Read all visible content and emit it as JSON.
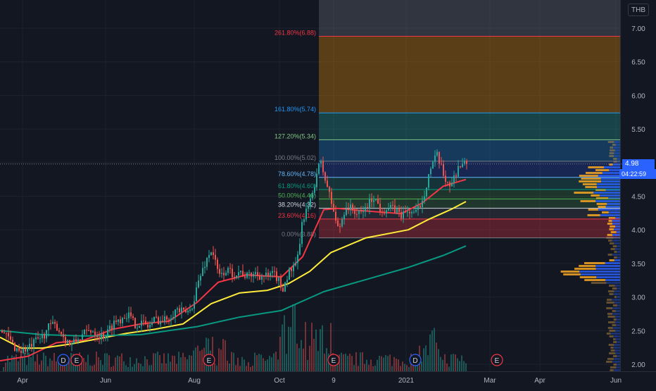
{
  "symbol_currency": "THB",
  "last_price": "4.98",
  "countdown": "04:22:59",
  "colors": {
    "background": "#131722",
    "up": "#26a69a",
    "down": "#ef5350",
    "ma_red": "#f23645",
    "ma_yellow": "#ffeb3b",
    "ma_teal": "#089981",
    "accent": "#2962ff"
  },
  "chart_data": {
    "type": "candlestick",
    "y_axis": {
      "ticks": [
        "7.00",
        "6.50",
        "6.00",
        "5.50",
        "5.00",
        "4.50",
        "4.00",
        "3.50",
        "3.00",
        "2.50",
        "2.00"
      ],
      "ylim": [
        2.0,
        7.0
      ]
    },
    "x_axis": {
      "ticks": [
        "Apr",
        "Jun",
        "Aug",
        "Oct",
        "9",
        "2021",
        "Mar",
        "Apr",
        "Jun"
      ]
    },
    "fib_levels": [
      {
        "label": "261.80%(6.88)",
        "value": 6.88,
        "color": "#f23645"
      },
      {
        "label": "161.80%(5.74)",
        "value": 5.74,
        "color": "#2196f3"
      },
      {
        "label": "127.20%(5.34)",
        "value": 5.34,
        "color": "#81c784"
      },
      {
        "label": "100.00%(5.02)",
        "value": 5.02,
        "color": "#787b86"
      },
      {
        "label": "78.60%(4.78)",
        "value": 4.78,
        "color": "#64b5f6"
      },
      {
        "label": "61.80%(4.60)",
        "value": 4.6,
        "color": "#089981"
      },
      {
        "label": "50.00%(4.46)",
        "value": 4.46,
        "color": "#4caf50"
      },
      {
        "label": "38.20%(4.32)",
        "value": 4.32,
        "color": "#d1d4dc"
      },
      {
        "label": "23.60%(4.16)",
        "value": 4.16,
        "color": "#f23645"
      },
      {
        "label": "0.00%(3.88)",
        "value": 3.88,
        "color": "#787b86"
      }
    ],
    "event_markers": [
      {
        "label": "D",
        "kind": "dividend"
      },
      {
        "label": "E",
        "kind": "earnings"
      },
      {
        "label": "E",
        "kind": "earnings"
      },
      {
        "label": "E",
        "kind": "earnings"
      },
      {
        "label": "D",
        "kind": "dividend"
      },
      {
        "label": "E",
        "kind": "earnings"
      }
    ],
    "price_path": [
      [
        0,
        2.5
      ],
      [
        10,
        2.4
      ],
      [
        20,
        2.25
      ],
      [
        30,
        2.2
      ],
      [
        40,
        2.24
      ],
      [
        50,
        2.34
      ],
      [
        60,
        2.42
      ],
      [
        70,
        2.58
      ],
      [
        80,
        2.56
      ],
      [
        90,
        2.4
      ],
      [
        100,
        2.28
      ],
      [
        110,
        2.38
      ],
      [
        120,
        2.46
      ],
      [
        130,
        2.52
      ],
      [
        140,
        2.42
      ],
      [
        150,
        2.44
      ],
      [
        160,
        2.62
      ],
      [
        170,
        2.68
      ],
      [
        180,
        2.76
      ],
      [
        190,
        2.6
      ],
      [
        200,
        2.62
      ],
      [
        210,
        2.56
      ],
      [
        220,
        2.68
      ],
      [
        230,
        2.64
      ],
      [
        240,
        2.72
      ],
      [
        250,
        2.82
      ],
      [
        260,
        2.76
      ],
      [
        270,
        2.8
      ],
      [
        280,
        3.2
      ],
      [
        290,
        3.5
      ],
      [
        300,
        3.72
      ],
      [
        310,
        3.3
      ],
      [
        320,
        3.4
      ],
      [
        330,
        3.35
      ],
      [
        340,
        3.38
      ],
      [
        350,
        3.3
      ],
      [
        360,
        3.36
      ],
      [
        370,
        3.32
      ],
      [
        380,
        3.3
      ],
      [
        390,
        3.34
      ],
      [
        400,
        3.12
      ],
      [
        410,
        3.38
      ],
      [
        420,
        3.45
      ],
      [
        430,
        4.2
      ],
      [
        440,
        4.4
      ],
      [
        450,
        4.9
      ],
      [
        455,
        4.98
      ],
      [
        462,
        4.72
      ],
      [
        470,
        4.4
      ],
      [
        480,
        3.98
      ],
      [
        490,
        4.35
      ],
      [
        500,
        4.3
      ],
      [
        510,
        4.22
      ],
      [
        520,
        4.35
      ],
      [
        530,
        4.5
      ],
      [
        540,
        4.3
      ],
      [
        550,
        4.32
      ],
      [
        560,
        4.3
      ],
      [
        570,
        4.22
      ],
      [
        580,
        4.28
      ],
      [
        590,
        4.24
      ],
      [
        600,
        4.48
      ],
      [
        610,
        4.9
      ],
      [
        620,
        5.1
      ],
      [
        630,
        4.78
      ],
      [
        640,
        4.66
      ],
      [
        650,
        4.95
      ],
      [
        662,
        4.98
      ]
    ],
    "moving_averages": [
      {
        "name": "MA20",
        "color": "#f23645",
        "points": [
          [
            0,
            2.05
          ],
          [
            40,
            2.12
          ],
          [
            80,
            2.32
          ],
          [
            120,
            2.36
          ],
          [
            160,
            2.52
          ],
          [
            200,
            2.6
          ],
          [
            240,
            2.64
          ],
          [
            280,
            2.92
          ],
          [
            310,
            3.22
          ],
          [
            350,
            3.33
          ],
          [
            400,
            3.3
          ],
          [
            430,
            3.6
          ],
          [
            460,
            4.3
          ],
          [
            480,
            4.32
          ],
          [
            520,
            4.28
          ],
          [
            570,
            4.24
          ],
          [
            600,
            4.4
          ],
          [
            630,
            4.65
          ],
          [
            662,
            4.75
          ]
        ]
      },
      {
        "name": "MA50",
        "color": "#ffeb3b",
        "points": [
          [
            0,
            2.4
          ],
          [
            30,
            2.24
          ],
          [
            60,
            2.24
          ],
          [
            100,
            2.3
          ],
          [
            140,
            2.38
          ],
          [
            180,
            2.46
          ],
          [
            220,
            2.52
          ],
          [
            260,
            2.6
          ],
          [
            300,
            2.9
          ],
          [
            340,
            3.06
          ],
          [
            380,
            3.1
          ],
          [
            410,
            3.2
          ],
          [
            440,
            3.38
          ],
          [
            470,
            3.66
          ],
          [
            520,
            3.88
          ],
          [
            580,
            4.0
          ],
          [
            610,
            4.16
          ],
          [
            640,
            4.3
          ],
          [
            662,
            4.42
          ]
        ]
      },
      {
        "name": "MA200",
        "color": "#089981",
        "points": [
          [
            0,
            2.5
          ],
          [
            60,
            2.44
          ],
          [
            120,
            2.42
          ],
          [
            200,
            2.44
          ],
          [
            280,
            2.56
          ],
          [
            340,
            2.7
          ],
          [
            400,
            2.8
          ],
          [
            460,
            3.08
          ],
          [
            520,
            3.26
          ],
          [
            580,
            3.44
          ],
          [
            630,
            3.62
          ],
          [
            662,
            3.76
          ]
        ]
      }
    ]
  }
}
